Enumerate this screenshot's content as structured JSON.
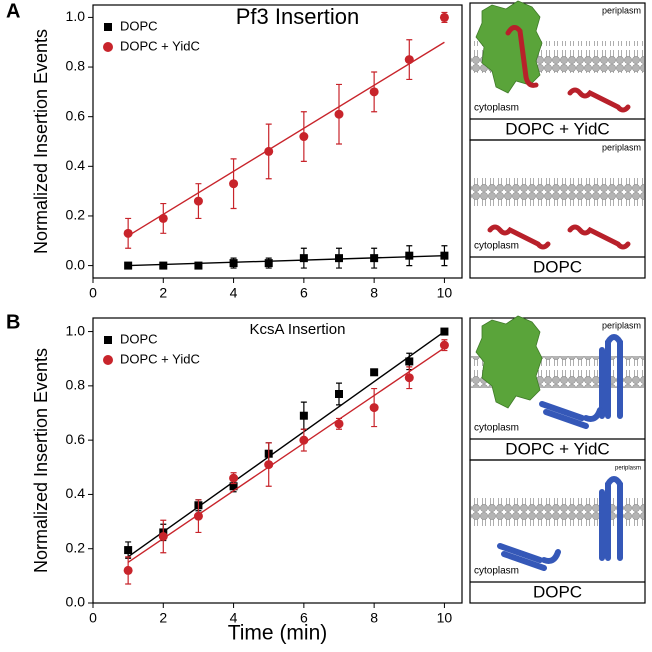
{
  "chart_data": [
    {
      "type": "scatter",
      "panel": "A",
      "title": "Pf3 Insertion",
      "ylabel": "Normalized Insertion Events",
      "x": [
        1,
        2,
        3,
        4,
        5,
        6,
        7,
        8,
        9,
        10
      ],
      "xlim": [
        0,
        10.5
      ],
      "xticks": [
        0,
        2,
        4,
        6,
        8,
        10
      ],
      "ylim": [
        -0.05,
        1.05
      ],
      "yticks": [
        {
          "value": 0,
          "label": "0.0"
        },
        0.2,
        0.4,
        0.6,
        0.8,
        {
          "value": 1,
          "label": "1.0"
        }
      ],
      "legend": "upper left",
      "series": [
        {
          "name": "DOPC",
          "color": "#000000",
          "marker": "square",
          "values": [
            0,
            0,
            0,
            0.01,
            0.01,
            0.03,
            0.03,
            0.03,
            0.04,
            0.04
          ],
          "errors": [
            0.01,
            0.01,
            0.01,
            0.02,
            0.02,
            0.04,
            0.04,
            0.04,
            0.04,
            0.04
          ],
          "fit": [
            0,
            0.04
          ]
        },
        {
          "name": "DOPC + YidC",
          "color": "#c8242b",
          "marker": "circle",
          "values": [
            0.13,
            0.19,
            0.26,
            0.33,
            0.46,
            0.52,
            0.61,
            0.7,
            0.83,
            1
          ],
          "errors": [
            0.06,
            0.06,
            0.07,
            0.1,
            0.11,
            0.1,
            0.12,
            0.08,
            0.08,
            0.02
          ],
          "fit": [
            0.12,
            0.9
          ]
        }
      ]
    },
    {
      "type": "scatter",
      "panel": "B",
      "title": "KcsA Insertion",
      "ylabel": "Normalized Insertion Events",
      "xlabel": "Time (min)",
      "x": [
        1,
        2,
        3,
        4,
        5,
        6,
        7,
        8,
        9,
        10
      ],
      "xlim": [
        0,
        10.5
      ],
      "xticks": [
        0,
        2,
        4,
        6,
        8,
        10
      ],
      "ylim": [
        0,
        1.05
      ],
      "yticks": [
        {
          "value": 0,
          "label": "0.0"
        },
        0.2,
        0.4,
        0.6,
        0.8,
        {
          "value": 1,
          "label": "1.0"
        }
      ],
      "legend": "upper left",
      "series": [
        {
          "name": "DOPC",
          "color": "#000000",
          "marker": "square",
          "values": [
            0.195,
            0.26,
            0.36,
            0.43,
            0.55,
            0.69,
            0.77,
            0.85,
            0.89,
            1
          ],
          "errors": [
            0.03,
            0.03,
            0.02,
            0.02,
            0.04,
            0.05,
            0.04,
            0.01,
            0.03,
            0
          ],
          "fit": [
            0.17,
            1
          ]
        },
        {
          "name": "DOPC + YidC",
          "color": "#c8242b",
          "marker": "circle",
          "values": [
            0.12,
            0.245,
            0.32,
            0.46,
            0.51,
            0.6,
            0.66,
            0.72,
            0.83,
            0.95
          ],
          "errors": [
            0.05,
            0.06,
            0.06,
            0.02,
            0.08,
            0.04,
            0.02,
            0.07,
            0.04,
            0.02
          ],
          "fit": [
            0.15,
            0.94
          ]
        }
      ]
    }
  ],
  "schematics": [
    {
      "panels": [
        {
          "top": "periplasm",
          "bottom": "cytoplasm",
          "caption": "DOPC + YidC"
        },
        {
          "top": "periplasm",
          "bottom": "cytoplasm",
          "caption": "DOPC"
        }
      ]
    },
    {
      "panels": [
        {
          "top": "periplasm",
          "bottom": "cytoplasm",
          "caption": "DOPC + YidC"
        },
        {
          "top": "periplasm",
          "bottom": "cytoplasm",
          "caption": "DOPC"
        }
      ]
    }
  ]
}
